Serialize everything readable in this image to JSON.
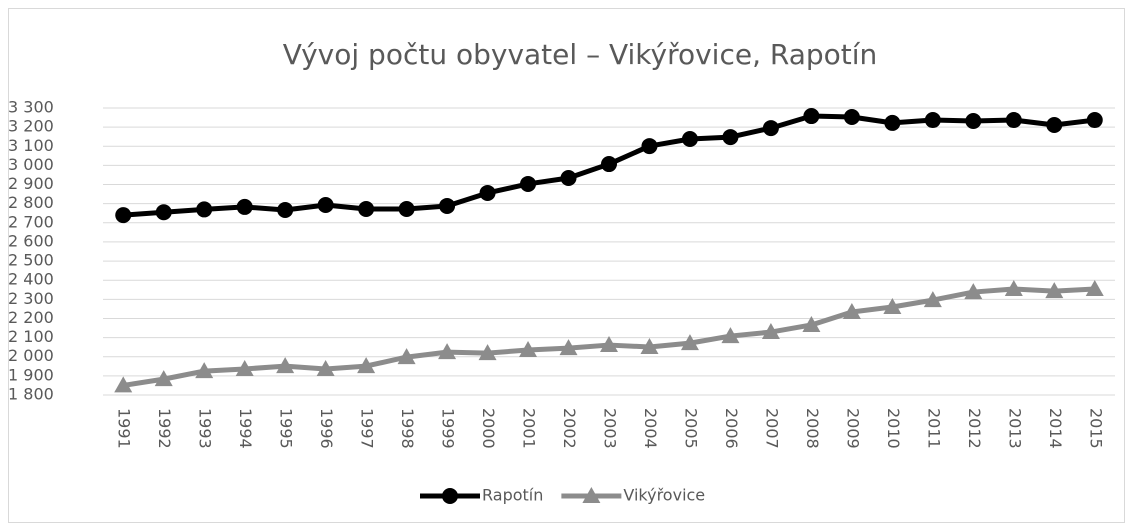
{
  "chart_data": {
    "type": "line",
    "title": "Vývoj počtu obyvatel – Vikýřovice, Rapotín",
    "categories": [
      "1991",
      "1992",
      "1993",
      "1994",
      "1995",
      "1996",
      "1997",
      "1998",
      "1999",
      "2000",
      "2001",
      "2002",
      "2003",
      "2004",
      "2005",
      "2006",
      "2007",
      "2008",
      "2009",
      "2010",
      "2011",
      "2012",
      "2013",
      "2014",
      "2015"
    ],
    "series": [
      {
        "name": "Rapotín",
        "color": "#000000",
        "marker": "circle",
        "values": [
          2740,
          2755,
          2770,
          2783,
          2767,
          2793,
          2772,
          2772,
          2788,
          2856,
          2903,
          2934,
          3007,
          3101,
          3138,
          3148,
          3195,
          3258,
          3253,
          3222,
          3237,
          3232,
          3237,
          3211,
          3237
        ]
      },
      {
        "name": "Vikýřovice",
        "color": "#8c8c8c",
        "marker": "triangle",
        "values": [
          1850,
          1883,
          1925,
          1936,
          1951,
          1936,
          1951,
          1998,
          2024,
          2019,
          2035,
          2045,
          2061,
          2051,
          2071,
          2108,
          2129,
          2166,
          2234,
          2260,
          2296,
          2338,
          2354,
          2343,
          2354
        ]
      }
    ],
    "ylim": [
      1800,
      3300
    ],
    "yticks": [
      {
        "value": 1800,
        "label": "1 800"
      },
      {
        "value": 1900,
        "label": "1 900"
      },
      {
        "value": 2000,
        "label": "2 000"
      },
      {
        "value": 2100,
        "label": "2 100"
      },
      {
        "value": 2200,
        "label": "2 200"
      },
      {
        "value": 2300,
        "label": "2 300"
      },
      {
        "value": 2400,
        "label": "2 400"
      },
      {
        "value": 2500,
        "label": "2 500"
      },
      {
        "value": 2600,
        "label": "2 600"
      },
      {
        "value": 2700,
        "label": "2 700"
      },
      {
        "value": 2800,
        "label": "2 800"
      },
      {
        "value": 2900,
        "label": "2 900"
      },
      {
        "value": 3000,
        "label": "3 000"
      },
      {
        "value": 3100,
        "label": "3 100"
      },
      {
        "value": 3200,
        "label": "3 200"
      },
      {
        "value": 3300,
        "label": "3 300"
      }
    ],
    "grid": true,
    "legend": "bottom"
  }
}
